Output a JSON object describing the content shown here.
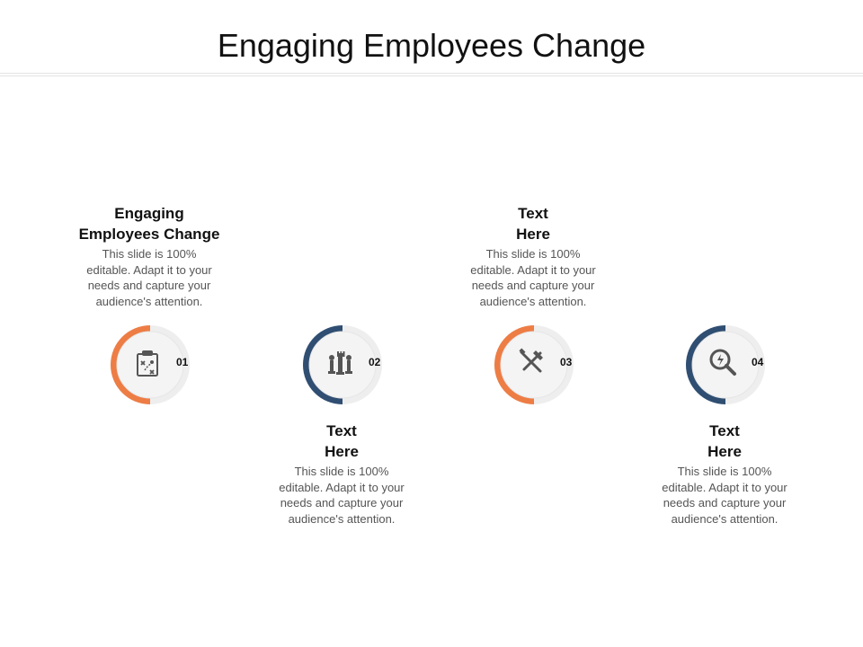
{
  "title": "Engaging Employees Change",
  "colors": {
    "orange": "#ED7D45",
    "navy": "#2F4E72",
    "ring_bg": "#EEEEEE",
    "inner": "#F3F3F3",
    "icon": "#555555"
  },
  "steps": [
    {
      "number": "01",
      "heading_line1": "Engaging",
      "heading_line2": "Employees Change",
      "body": [
        "This slide is 100%",
        "editable. Adapt it to your",
        "needs and capture your",
        "audience's attention."
      ],
      "icon": "strategy-board-icon",
      "color": "orange"
    },
    {
      "number": "02",
      "heading_line1": "Text",
      "heading_line2": "Here",
      "body": [
        "This slide is 100%",
        "editable. Adapt it to your",
        "needs and capture your",
        "audience's attention."
      ],
      "icon": "chess-pieces-icon",
      "color": "navy"
    },
    {
      "number": "03",
      "heading_line1": "Text",
      "heading_line2": "Here",
      "body": [
        "This slide is 100%",
        "editable. Adapt it to your",
        "needs and capture your",
        "audience's attention."
      ],
      "icon": "tools-icon",
      "color": "orange"
    },
    {
      "number": "04",
      "heading_line1": "Text",
      "heading_line2": "Here",
      "body": [
        "This slide is 100%",
        "editable. Adapt it to your",
        "needs and capture your",
        "audience's attention."
      ],
      "icon": "magnifier-icon",
      "color": "navy"
    }
  ]
}
